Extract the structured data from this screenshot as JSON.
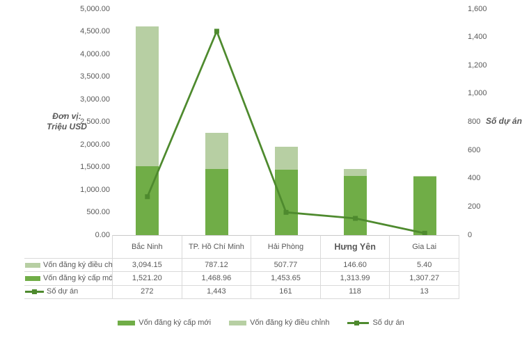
{
  "colors": {
    "bar_new": "#70ad47",
    "bar_adjust": "#b7cfa3",
    "line": "#4e8a2e",
    "text": "#595959",
    "table_border": "#d9d9d9",
    "axis_line": "#c9c9c9"
  },
  "axis_titles": {
    "left_line1": "Đơn vị:",
    "left_line2": "Triệu USD",
    "right": "Số dự án"
  },
  "chart_data": {
    "type": "bar",
    "subtype": "stacked-bars-with-line-overlay",
    "categories": [
      "Bắc Ninh",
      "TP. Hồ Chí Minh",
      "Hải Phòng",
      "Hưng Yên",
      "Gia Lai"
    ],
    "series": [
      {
        "name": "Vốn đăng ký cấp mới",
        "type": "bar",
        "axis": "left",
        "color": "#70ad47",
        "values": [
          1521.2,
          1468.96,
          1453.65,
          1313.99,
          1307.27
        ]
      },
      {
        "name": "Vốn đăng ký điều chỉnh",
        "type": "bar",
        "axis": "left",
        "color": "#b7cfa3",
        "values": [
          3094.15,
          787.12,
          507.77,
          146.6,
          5.4
        ]
      },
      {
        "name": "Số dự án",
        "type": "line",
        "axis": "right",
        "color": "#4e8a2e",
        "values": [
          272,
          1443,
          161,
          118,
          13
        ]
      }
    ],
    "left_axis": {
      "title": "Đơn vị: Triệu USD",
      "min": 0,
      "max": 5000,
      "step": 500,
      "tick_labels": [
        "5,000.00",
        "4,500.00",
        "4,000.00",
        "3,500.00",
        "3,000.00",
        "2,500.00",
        "2,000.00",
        "1,500.00",
        "1,000.00",
        "500.00",
        "0.00"
      ]
    },
    "right_axis": {
      "title": "Số dự án",
      "min": 0,
      "max": 1600,
      "step": 200,
      "tick_labels": [
        "1,600",
        "1,400",
        "1,200",
        "1,000",
        "800",
        "600",
        "400",
        "200",
        "0"
      ]
    },
    "gridlines": false,
    "legend_position": "bottom"
  },
  "table": {
    "categories": [
      {
        "label": "Bắc Ninh"
      },
      {
        "label": "TP. Hồ Chí Minh"
      },
      {
        "label": "Hải Phòng"
      },
      {
        "label": "Hưng Yên",
        "bold": true
      },
      {
        "label": "Gia Lai"
      }
    ],
    "rows": [
      {
        "label": "Vốn đăng ký điều chỉnh",
        "swatch": "light",
        "values": [
          "3,094.15",
          "787.12",
          "507.77",
          "146.60",
          "5.40"
        ]
      },
      {
        "label": "Vốn đăng ký cấp mới",
        "swatch": "dark",
        "values": [
          "1,521.20",
          "1,468.96",
          "1,453.65",
          "1,313.99",
          "1,307.27"
        ]
      },
      {
        "label": "Số dự án",
        "swatch": "line",
        "values": [
          "272",
          "1,443",
          "161",
          "118",
          "13"
        ]
      }
    ]
  },
  "legend": {
    "items": [
      {
        "label": "Vốn đăng ký cấp mới",
        "swatch": "dark"
      },
      {
        "label": "Vốn đăng ký điều chỉnh",
        "swatch": "light"
      },
      {
        "label": "Số dự án",
        "swatch": "line"
      }
    ]
  }
}
